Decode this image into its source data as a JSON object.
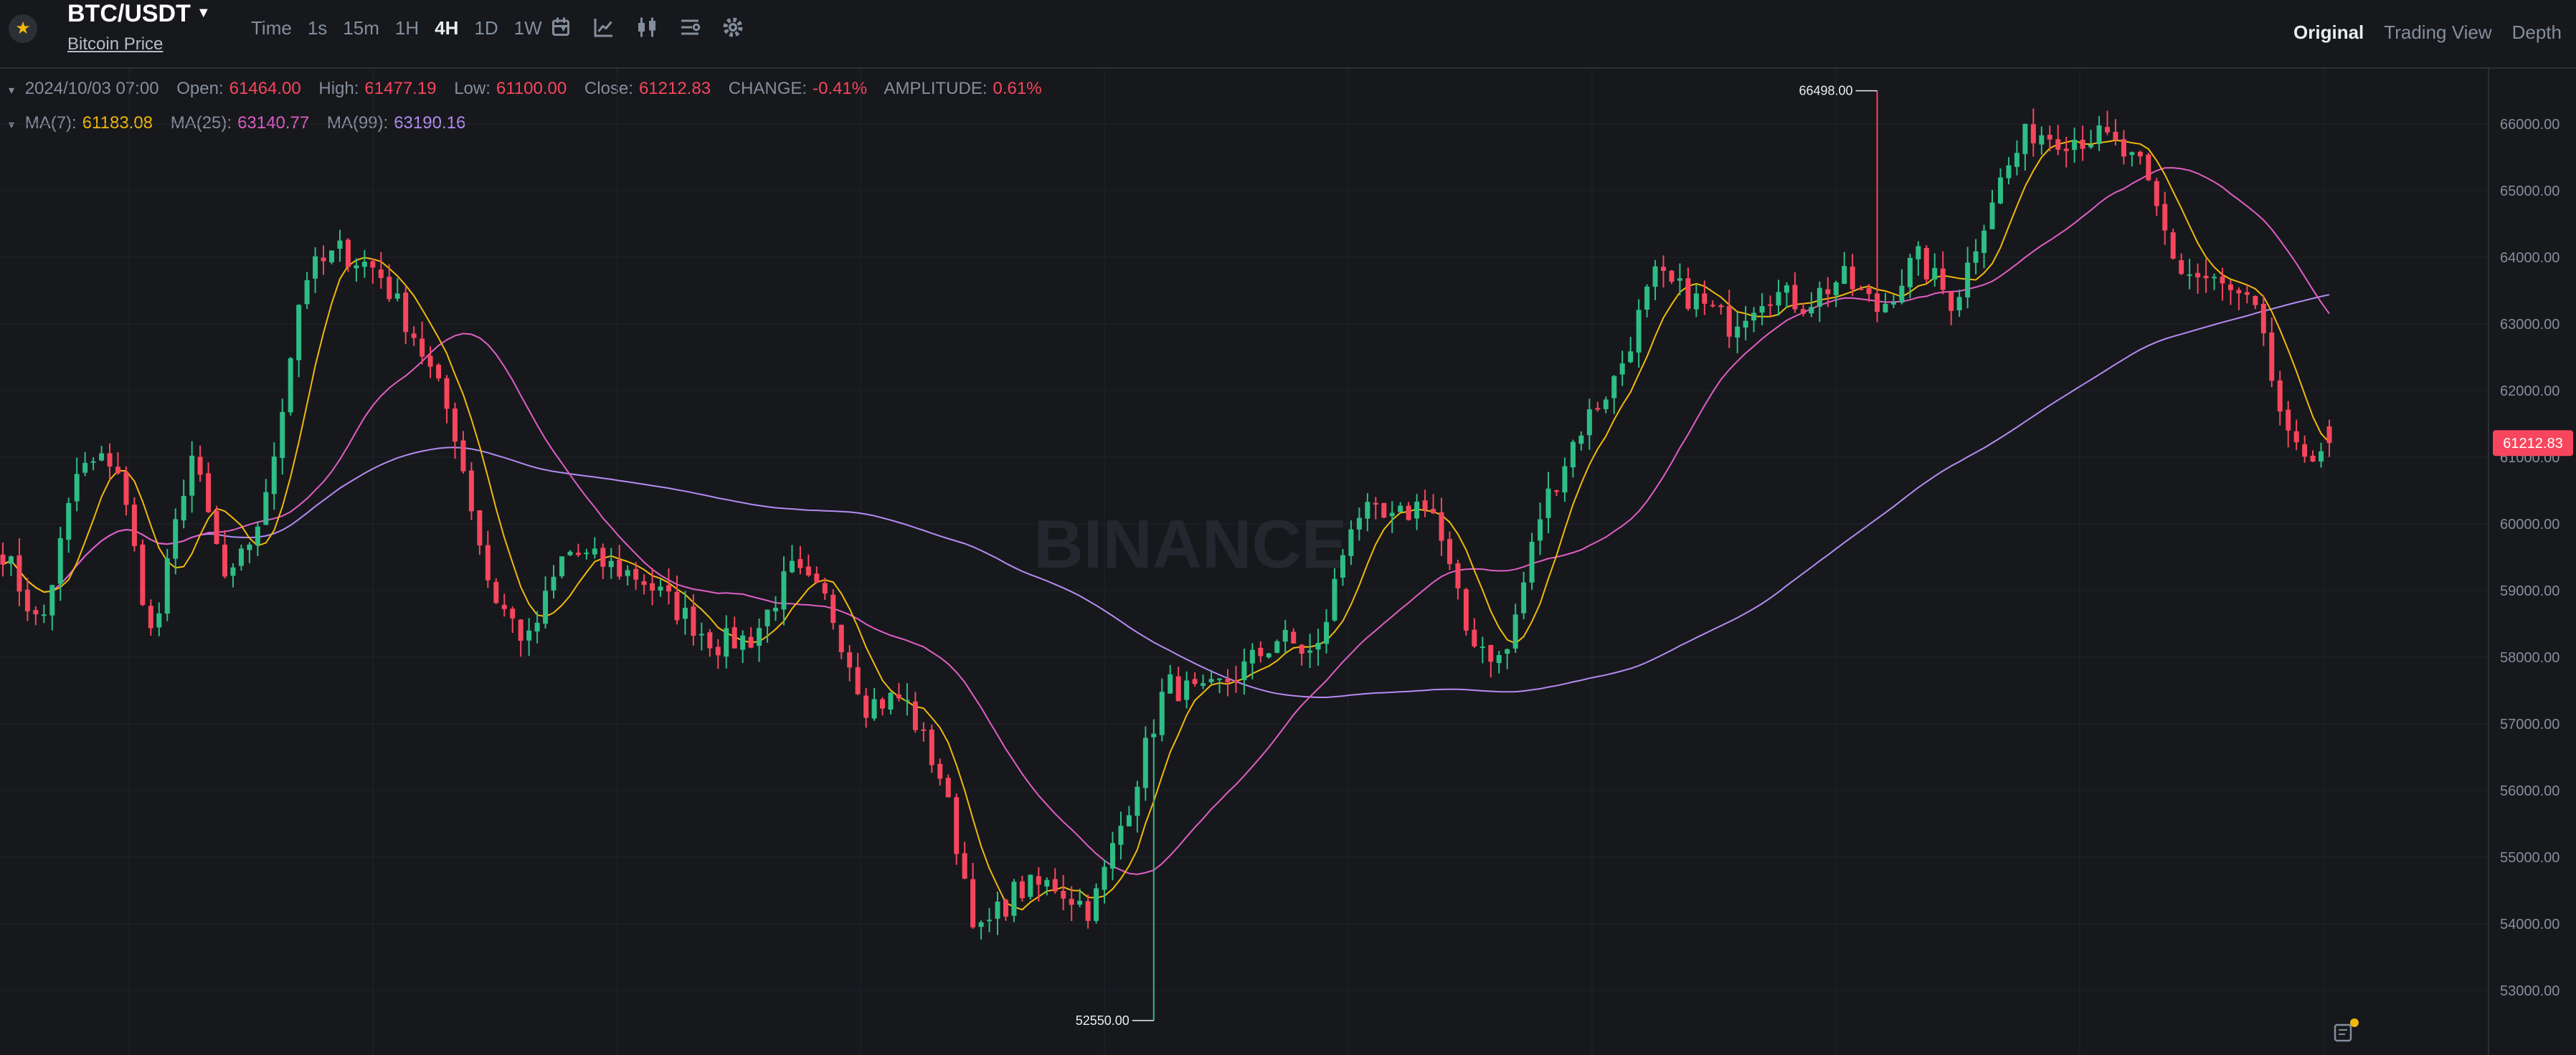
{
  "header": {
    "pair": "BTC/USDT",
    "subtitle": "Bitcoin Price",
    "intervals": [
      "Time",
      "1s",
      "15m",
      "1H",
      "4H",
      "1D",
      "1W"
    ],
    "active_interval": "4H",
    "views": [
      "Original",
      "Trading View",
      "Depth"
    ],
    "active_view": "Original",
    "tool_icons": [
      "candle-type-icon",
      "indicator-icon",
      "chart-style-icon",
      "layout-icon",
      "settings-icon"
    ]
  },
  "ohlc": {
    "date": "2024/10/03 07:00",
    "open_label": "Open:",
    "open": "61464.00",
    "high_label": "High:",
    "high": "61477.19",
    "low_label": "Low:",
    "low": "61100.00",
    "close_label": "Close:",
    "close": "61212.83",
    "change_label": "CHANGE:",
    "change": "-0.41%",
    "amplitude_label": "AMPLITUDE:",
    "amplitude": "0.61%"
  },
  "ma": {
    "ma7_label": "MA(7):",
    "ma7": "61183.08",
    "ma25_label": "MA(25):",
    "ma25": "63140.77",
    "ma99_label": "MA(99):",
    "ma99": "63190.16"
  },
  "watermark": "BINANCE",
  "colors": {
    "up": "#2ebd85",
    "down": "#f6465d",
    "ma7": "#f0b90b",
    "ma25": "#e05ec5",
    "ma99": "#b48cf2",
    "background": "#17181c",
    "grid": "#22252b"
  },
  "chart_data": {
    "type": "candlestick",
    "yticks": [
      "53000.00",
      "54000.00",
      "55000.00",
      "56000.00",
      "57000.00",
      "58000.00",
      "59000.00",
      "60000.00",
      "61000.00",
      "62000.00",
      "63000.00",
      "64000.00",
      "65000.00",
      "66000.00"
    ],
    "ylim": [
      52300,
      66800
    ],
    "last_price": "61212.83",
    "high_marker": {
      "value": 66498.0,
      "label": "66498.00"
    },
    "low_marker": {
      "value": 52550.0,
      "label": "52550.00"
    },
    "key_points": [
      59600,
      58400,
      60800,
      61000,
      58200,
      61100,
      59000,
      60300,
      63700,
      64100,
      63800,
      62800,
      61500,
      59000,
      58200,
      59600,
      59400,
      59200,
      58700,
      58200,
      58300,
      59300,
      58800,
      57300,
      57400,
      56200,
      53800,
      54500,
      54600,
      54200,
      55800,
      57600,
      57400,
      57800,
      58300,
      58000,
      60200,
      60000,
      60400,
      58400,
      57900,
      60200,
      61400,
      62200,
      63700,
      63400,
      63000,
      63500,
      63300,
      63700,
      63200,
      64000,
      63300,
      64900,
      65900,
      65800,
      65800,
      65300,
      63800,
      63600,
      63200,
      61000,
      61200
    ]
  }
}
